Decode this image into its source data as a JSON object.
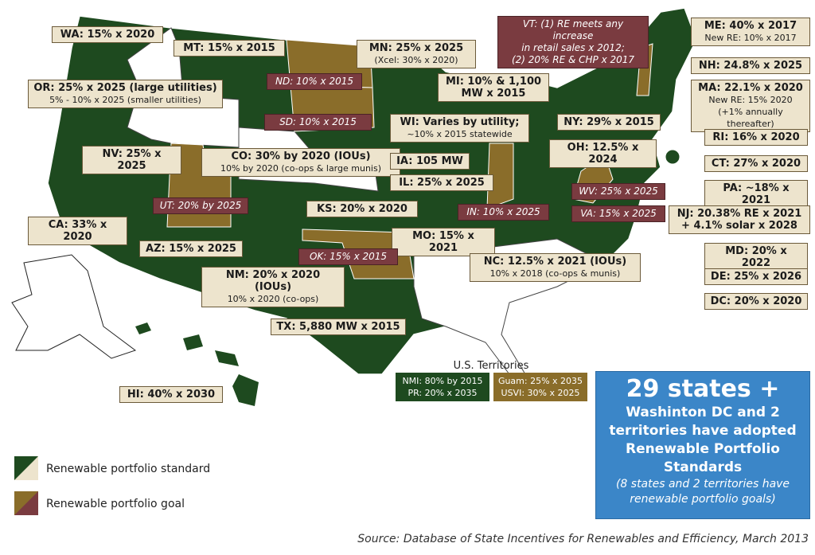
{
  "standard_labels": [
    {
      "lines": [
        "WA: 15% x 2020"
      ]
    },
    {
      "lines": [
        "MT: 15% x 2015"
      ]
    },
    {
      "lines": [
        "MN: 25% x 2025",
        "(Xcel: 30% x 2020)"
      ]
    },
    {
      "lines": [
        "OR: 25% x 2025 (large utilities)",
        "5% - 10% x 2025 (smaller utilities)"
      ]
    },
    {
      "lines": [
        "MI: 10% & 1,100 MW x 2015"
      ]
    },
    {
      "lines": [
        "WI: Varies by utility;",
        "~10% x 2015 statewide"
      ]
    },
    {
      "lines": [
        "NY: 29% x 2015"
      ]
    },
    {
      "lines": [
        "ME: 40% x 2017",
        "New RE: 10% x 2017"
      ]
    },
    {
      "lines": [
        "NH: 24.8% x 2025"
      ]
    },
    {
      "lines": [
        "MA: 22.1% x 2020",
        "New RE: 15% 2020",
        "(+1% annually thereafter)"
      ]
    },
    {
      "lines": [
        "RI: 16% x 2020"
      ]
    },
    {
      "lines": [
        "CT: 27% x 2020"
      ]
    },
    {
      "lines": [
        "PA: ~18% x 2021"
      ]
    },
    {
      "lines": [
        "NJ: 20.38% RE x 2021 + 4.1% solar x 2028"
      ]
    },
    {
      "lines": [
        "MD: 20% x 2022"
      ]
    },
    {
      "lines": [
        "DE: 25% x 2026"
      ]
    },
    {
      "lines": [
        "DC: 20% x 2020"
      ]
    },
    {
      "lines": [
        "NV: 25% x 2025"
      ]
    },
    {
      "lines": [
        "CO: 30% by 2020 (IOUs)",
        "10% by 2020 (co-ops & large munis)"
      ]
    },
    {
      "lines": [
        "OH: 12.5% x 2024"
      ]
    },
    {
      "lines": [
        "IA: 105 MW"
      ]
    },
    {
      "lines": [
        "IL: 25% x 2025"
      ]
    },
    {
      "lines": [
        "KS: 20% x 2020"
      ]
    },
    {
      "lines": [
        "CA: 33% x 2020"
      ]
    },
    {
      "lines": [
        "MO: 15% x 2021"
      ]
    },
    {
      "lines": [
        "AZ: 15% x 2025"
      ]
    },
    {
      "lines": [
        "NC: 12.5% x 2021 (IOUs)",
        "10% x 2018 (co-ops & munis)"
      ]
    },
    {
      "lines": [
        "NM: 20% x 2020 (IOUs)",
        "10% x 2020 (co-ops)"
      ]
    },
    {
      "lines": [
        "TX: 5,880 MW x 2015"
      ]
    },
    {
      "lines": [
        "HI: 40% x 2030"
      ]
    }
  ],
  "goal_labels": [
    {
      "lines": [
        "ND: 10% x 2015"
      ]
    },
    {
      "lines": [
        "SD: 10% x 2015"
      ]
    },
    {
      "lines": [
        "VT: (1) RE meets any increase",
        "in retail sales x 2012;",
        "(2) 20% RE & CHP x 2017"
      ]
    },
    {
      "lines": [
        "UT: 20% by 2025"
      ]
    },
    {
      "lines": [
        "WV: 25% x 2025"
      ]
    },
    {
      "lines": [
        "IN: 10% x 2025"
      ]
    },
    {
      "lines": [
        "VA: 15% x 2025"
      ]
    },
    {
      "lines": [
        "OK: 15% x 2015"
      ]
    }
  ],
  "territories": {
    "title": "U.S. Territories",
    "standard": [
      "NMI: 80% by 2015",
      "PR: 20% x 2035"
    ],
    "goal": [
      "Guam: 25% x 2035",
      "USVI: 30% x 2025"
    ]
  },
  "legend": [
    "Renewable portfolio standard",
    "Renewable portfolio goal"
  ],
  "callout": {
    "headline": "29 states +",
    "body": "Washinton DC and 2 territories have adopted Renewable Portfolio Standards",
    "note": "(8 states and 2 territories have renewable portfolio goals)"
  },
  "source": "Source: Database of State Incentives for Renewables and Efficiency, March 2013"
}
